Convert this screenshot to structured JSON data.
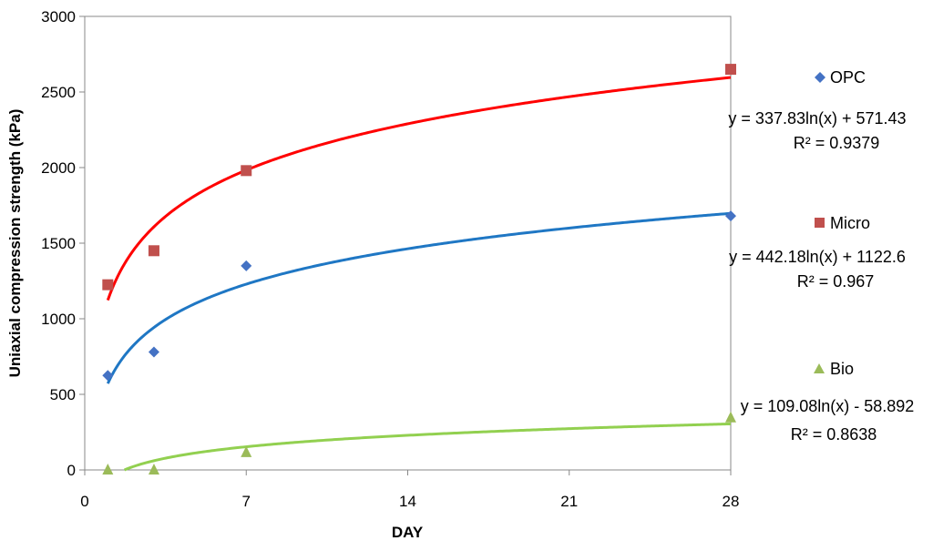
{
  "chart_data": {
    "type": "scatter",
    "title": "",
    "xlabel": "DAY",
    "ylabel": "Uniaxial compression strength (kPa)",
    "xlim": [
      0,
      28
    ],
    "ylim": [
      0,
      3000
    ],
    "xticks": [
      "0",
      "7",
      "14",
      "21",
      "28"
    ],
    "yticks": [
      "0",
      "500",
      "1000",
      "1500",
      "2000",
      "2500",
      "3000"
    ],
    "grid": false,
    "legend_position": "right",
    "series": [
      {
        "name": "OPC",
        "marker": "diamond",
        "color": "#4472C4",
        "trend_color": "#1F77C4",
        "x": [
          1,
          3,
          7,
          28
        ],
        "y": [
          625,
          780,
          1350,
          1680
        ],
        "trendline": {
          "type": "log",
          "a": 337.83,
          "b": 571.43
        },
        "equation": "y = 337.83ln(x) + 571.43",
        "r2": "R² = 0.9379"
      },
      {
        "name": "Micro",
        "marker": "square",
        "color": "#C0504D",
        "trend_color": "#FF0000",
        "x": [
          1,
          3,
          7,
          28
        ],
        "y": [
          1225,
          1450,
          1980,
          2650
        ],
        "trendline": {
          "type": "log",
          "a": 442.18,
          "b": 1122.6
        },
        "equation": "y = 442.18ln(x) + 1122.6",
        "r2": "R² = 0.967"
      },
      {
        "name": "Bio",
        "marker": "triangle",
        "color": "#9BBB59",
        "trend_color": "#92D050",
        "x": [
          1,
          3,
          7,
          28
        ],
        "y": [
          0,
          0,
          115,
          345
        ],
        "trendline": {
          "type": "log",
          "a": 109.08,
          "b": -58.892
        },
        "equation": "y = 109.08ln(x) - 58.892",
        "r2": "R² = 0.8638"
      }
    ]
  }
}
